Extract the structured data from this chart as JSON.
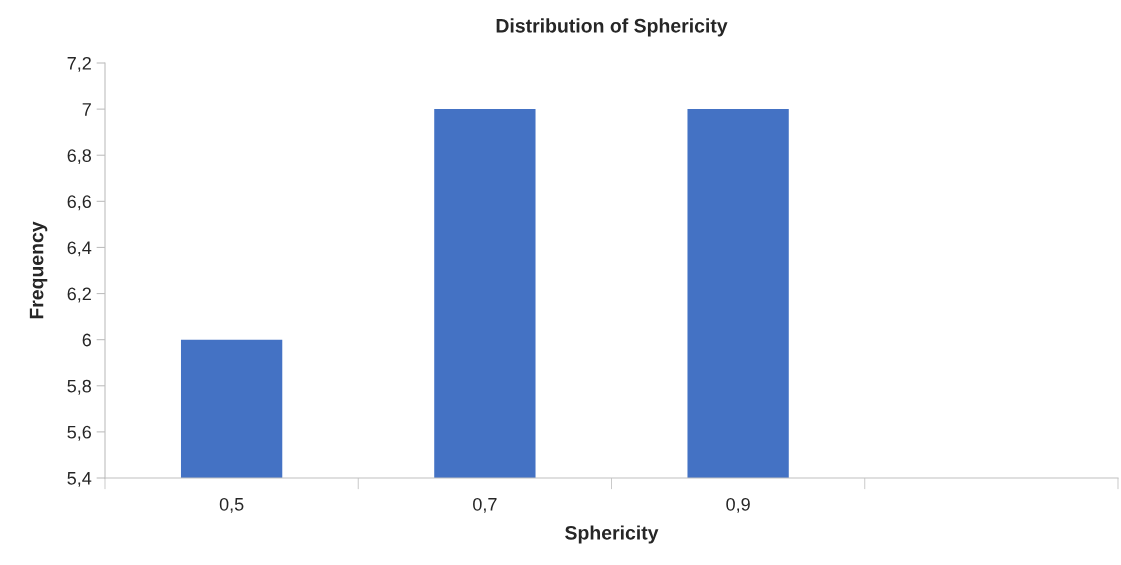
{
  "chart_data": {
    "type": "bar",
    "title": "Distribution of Sphericity",
    "xlabel": "Sphericity",
    "ylabel": "Frequency",
    "categories": [
      "0,5",
      "0,7",
      "0,9",
      null
    ],
    "values": [
      6,
      7,
      7,
      null
    ],
    "color": "#4472c4",
    "ylim": [
      5.4,
      7.2
    ],
    "yticks": [
      {
        "value": 5.4,
        "label": "5,4"
      },
      {
        "value": 5.6,
        "label": "5,6"
      },
      {
        "value": 5.8,
        "label": "5,8"
      },
      {
        "value": 6,
        "label": "6"
      },
      {
        "value": 6.2,
        "label": "6,2"
      },
      {
        "value": 6.4,
        "label": "6,4"
      },
      {
        "value": 6.6,
        "label": "6,6"
      },
      {
        "value": 6.8,
        "label": "6,8"
      },
      {
        "value": 7,
        "label": "7"
      },
      {
        "value": 7.2,
        "label": "7,2"
      }
    ],
    "grid": false,
    "legend": false
  }
}
